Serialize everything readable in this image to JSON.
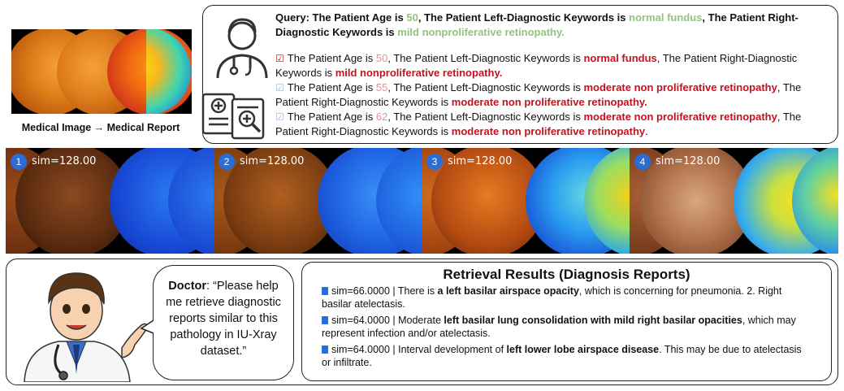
{
  "top": {
    "caption": "Medical Image → Medical Report",
    "query": {
      "prefix": "Query: The Patient Age is ",
      "age": "50",
      "mid1": ", The Patient Left-Diagnostic Keywords is ",
      "left_kw": "normal fundus",
      "mid2": ", The Patient Right-Diagnostic Keywords is ",
      "right_kw": "mild nonproliferative retinopathy."
    },
    "results": [
      {
        "check": "☑",
        "age_prefix": "The Patient Age is ",
        "age": "50",
        "left_prefix": ", The Patient Left-Diagnostic Keywords is ",
        "left_kw": "normal fundus",
        "right_prefix": ", The Patient Right-Diagnostic Keywords is ",
        "right_kw": "mild nonproliferative retinopathy.",
        "trail": ""
      },
      {
        "check": "☑",
        "age_prefix": "The Patient Age is ",
        "age": "55",
        "left_prefix": ", The Patient Left-Diagnostic Keywords is ",
        "left_kw": "moderate non proliferative retinopathy",
        "right_prefix": ", The Patient Right-Diagnostic Keywords is ",
        "right_kw": "moderate non proliferative retinopathy.",
        "trail": ""
      },
      {
        "check": "☑",
        "age_prefix": "The Patient Age is ",
        "age": "62",
        "left_prefix": ", The Patient Left-Diagnostic Keywords is ",
        "left_kw": "moderate non proliferative retinopathy",
        "right_prefix": ", The Patient Right-Diagnostic Keywords is ",
        "right_kw": "moderate non proliferative retinopathy",
        "trail": "."
      }
    ]
  },
  "strip": {
    "tiles": [
      {
        "num": "1",
        "sim": "sim=128.00"
      },
      {
        "num": "2",
        "sim": "sim=128.00"
      },
      {
        "num": "3",
        "sim": "sim=128.00"
      },
      {
        "num": "4",
        "sim": "sim=128.00"
      }
    ]
  },
  "bottom": {
    "doctor_label": "Doctor",
    "doctor_text": ": “Please help me retrieve diagnostic reports similar to this pathology in IU-Xray dataset.”",
    "results_title": "Retrieval Results (Diagnosis Reports)",
    "reports": [
      {
        "pre": "sim=66.0000 | There is ",
        "bold": "a left basilar airspace opacity",
        "post": ", which is concerning for pneumonia. 2. Right basilar atelectasis."
      },
      {
        "pre": "sim=64.0000 | Moderate ",
        "bold": "left basilar lung consolidation with mild right basilar opacities",
        "post": ", which may represent infection and/or atelectasis."
      },
      {
        "pre": "sim=64.0000 | Interval development of ",
        "bold": "left lower lobe airspace disease",
        "post": ". This may be due to atelectasis or infiltrate."
      }
    ]
  },
  "colors": {
    "green": "#94c47c",
    "pink": "#e8909c",
    "red": "#c8101e",
    "badge": "#2a6dd8"
  },
  "icons": [
    "doctor-icon",
    "medical-report-icon",
    "checkbox-icon",
    "document-icon"
  ]
}
